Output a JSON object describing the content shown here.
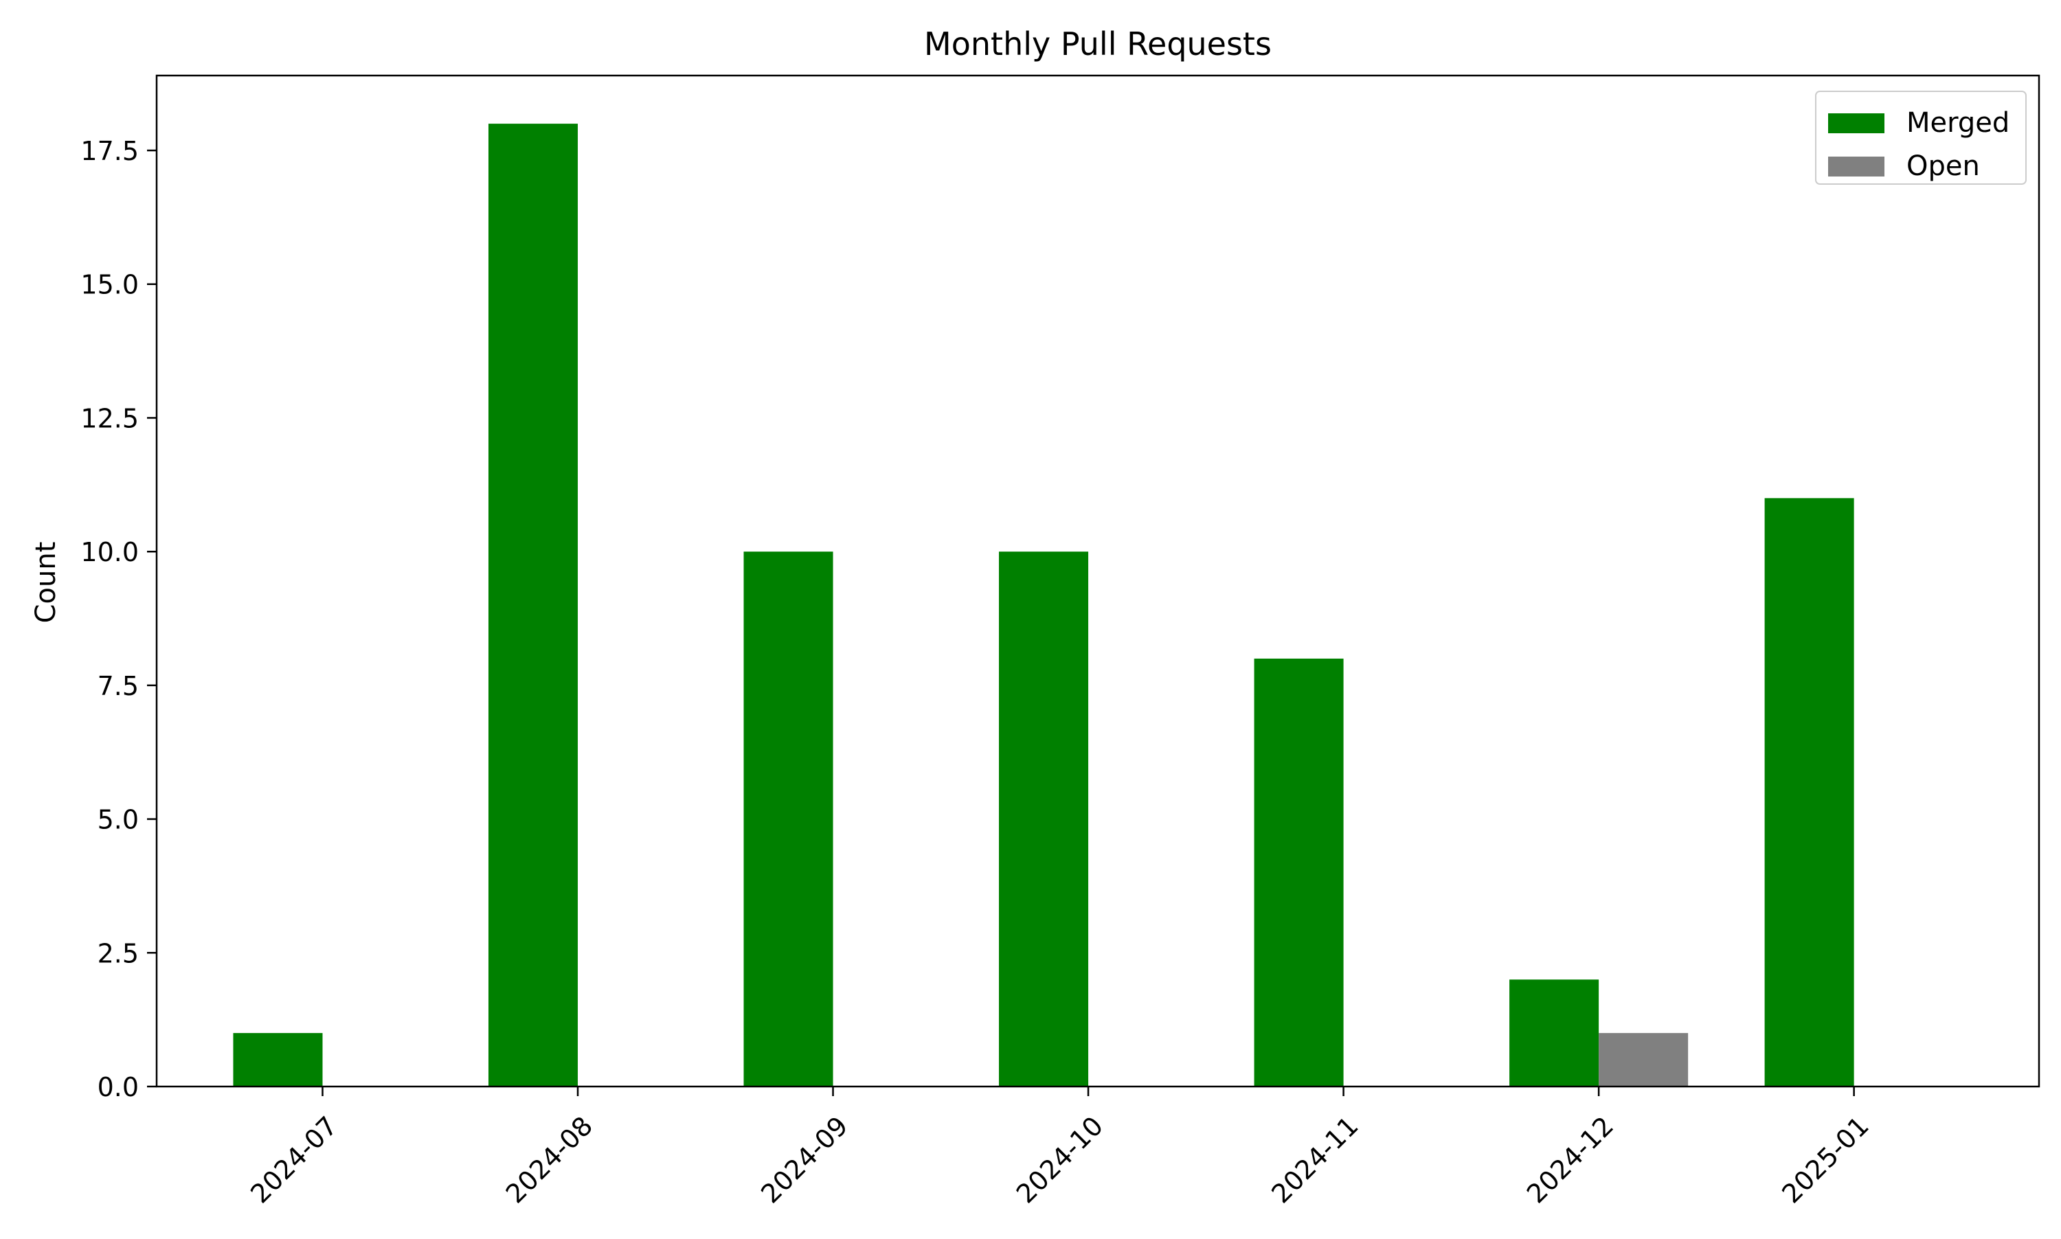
{
  "chart_data": {
    "type": "bar",
    "title": "Monthly Pull Requests",
    "xlabel": "",
    "ylabel": "Count",
    "categories": [
      "2024-07",
      "2024-08",
      "2024-09",
      "2024-10",
      "2024-11",
      "2024-12",
      "2025-01"
    ],
    "series": [
      {
        "name": "Merged",
        "color": "#008000",
        "values": [
          1,
          18,
          10,
          10,
          8,
          2,
          11
        ]
      },
      {
        "name": "Open",
        "color": "#808080",
        "values": [
          0,
          0,
          0,
          0,
          0,
          1,
          0
        ]
      }
    ],
    "ylim": [
      0,
      18.9
    ],
    "yticks": [
      "0.0",
      "2.5",
      "5.0",
      "7.5",
      "10.0",
      "12.5",
      "15.0",
      "17.5"
    ],
    "ytick_values": [
      0,
      2.5,
      5,
      7.5,
      10,
      12.5,
      15,
      17.5
    ],
    "grid": false,
    "legend": "top-right"
  }
}
